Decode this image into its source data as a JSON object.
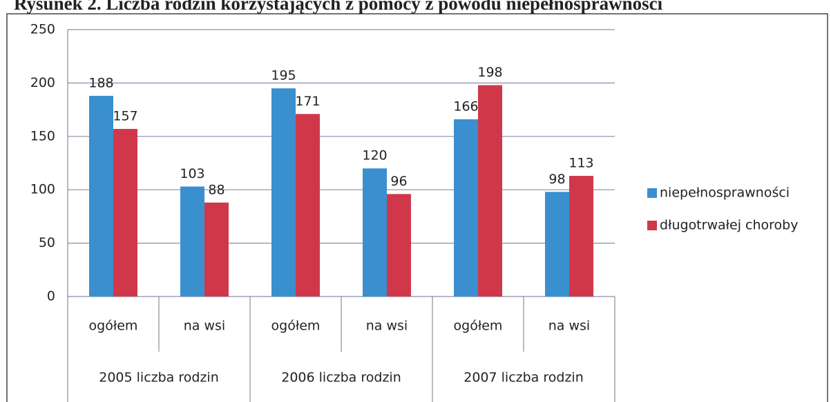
{
  "chart_data": {
    "type": "bar",
    "title": "Rysunek 2. Liczba rodzin korzystających z pomocy z powodu niepełnosprawności",
    "categories": [
      "ogółem",
      "na wsi",
      "ogółem",
      "na wsi",
      "ogółem",
      "na wsi"
    ],
    "category_groups": [
      "2005 liczba rodzin",
      "2006 liczba rodzin",
      "2007 liczba rodzin"
    ],
    "series": [
      {
        "name": "niepełnosprawności",
        "color": "#3a8fcf",
        "values": [
          188,
          103,
          195,
          120,
          166,
          98
        ]
      },
      {
        "name": "długotrwałej choroby",
        "color": "#d0384a",
        "values": [
          157,
          88,
          171,
          96,
          198,
          113
        ]
      }
    ],
    "ylim": [
      0,
      250
    ],
    "yticks": [
      0,
      50,
      100,
      150,
      200,
      250
    ],
    "grid": true,
    "legend": "right"
  }
}
